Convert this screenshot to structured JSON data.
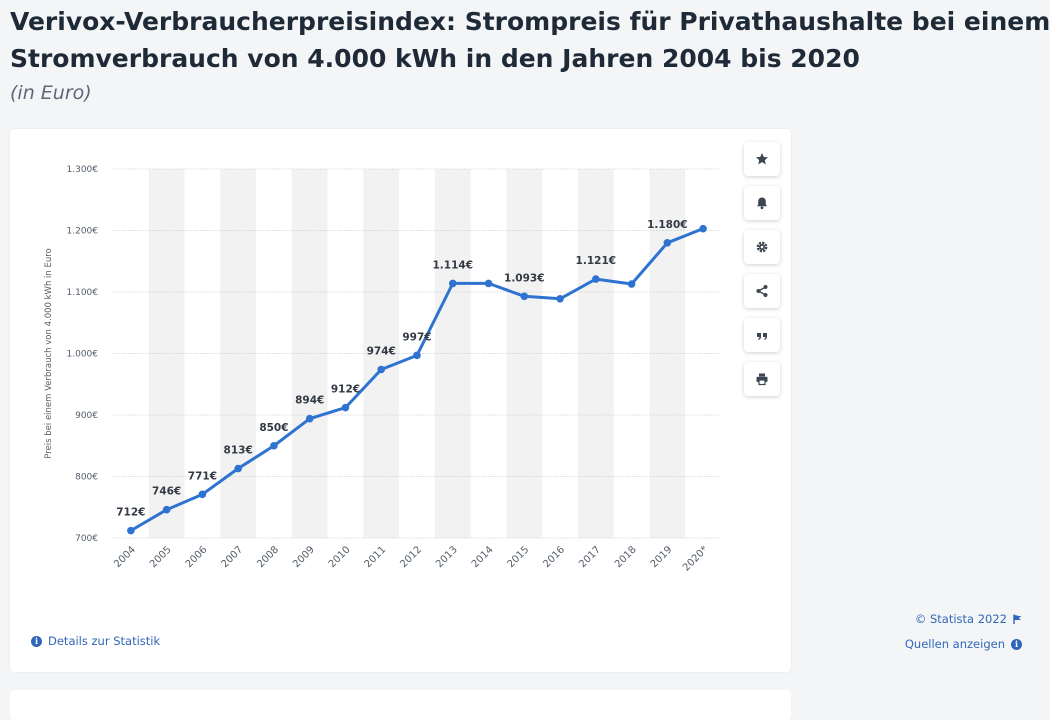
{
  "header": {
    "title_line1": "Verivox-Verbraucherpreisindex: Strompreis für Privathaushalte bei einem",
    "title_line2": "Stromverbrauch von 4.000 kWh in den Jahren 2004 bis 2020",
    "subtitle": "(in Euro)"
  },
  "toolbar": {
    "icons": [
      "star-icon",
      "bell-icon",
      "gear-icon",
      "share-icon",
      "quote-icon",
      "print-icon"
    ]
  },
  "footer": {
    "details_label": "Details zur Statistik",
    "copyright": "© Statista 2022",
    "sources_label": "Quellen anzeigen"
  },
  "chart_data": {
    "type": "line",
    "categories": [
      "2004",
      "2005",
      "2006",
      "2007",
      "2008",
      "2009",
      "2010",
      "2011",
      "2012",
      "2013",
      "2014",
      "2015",
      "2016",
      "2017",
      "2018",
      "2019",
      "2020*"
    ],
    "values": [
      712,
      746,
      771,
      813,
      850,
      894,
      912,
      974,
      997,
      1114,
      1114,
      1093,
      1089,
      1121,
      1113,
      1180,
      1203
    ],
    "data_labels": [
      "712€",
      "746€",
      "771€",
      "813€",
      "850€",
      "894€",
      "912€",
      "974€",
      "997€",
      "1.114€",
      "",
      "1.093€",
      "",
      "1.121€",
      "",
      "1.180€",
      ""
    ],
    "y_ticks": [
      700,
      800,
      900,
      1000,
      1100,
      1200,
      1300
    ],
    "y_tick_labels": [
      "700€",
      "800€",
      "900€",
      "1.000€",
      "1.100€",
      "1.200€",
      "1.300€"
    ],
    "ylim": [
      700,
      1300
    ],
    "ylabel": "Preis bei einem Verbrauch von 4.000 kWh in Euro",
    "xlabel": "",
    "grid": true,
    "line_color": "#2f73d0"
  }
}
